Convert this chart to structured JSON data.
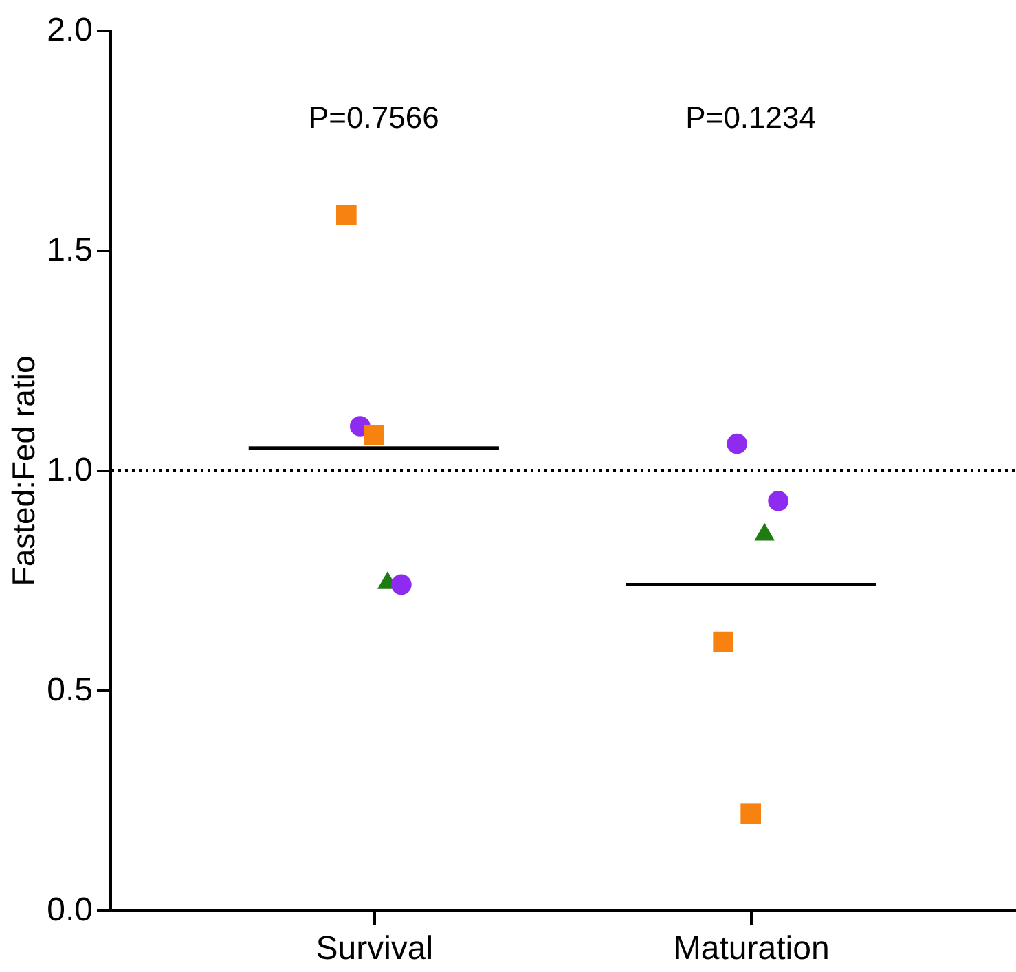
{
  "chart_data": {
    "type": "scatter",
    "categories": [
      "Survival",
      "Maturation"
    ],
    "ylabel": "Fasted:Fed ratio",
    "ylim": [
      0,
      2
    ],
    "yticks": [
      {
        "value": 0,
        "label": "0.0"
      },
      {
        "value": 0.5,
        "label": "0.5"
      },
      {
        "value": 1,
        "label": "1.0"
      },
      {
        "value": 1.5,
        "label": "1.5"
      },
      {
        "value": 2,
        "label": "2.0"
      }
    ],
    "grid": false,
    "series": [
      {
        "color": "#f7820f",
        "marker": "square",
        "values": [
          1.58,
          0.61
        ]
      },
      {
        "color": "#8f2bf0",
        "marker": "circle",
        "values": [
          1.1,
          1.06
        ]
      },
      {
        "color": "#f7820f",
        "marker": "square",
        "values": [
          1.08,
          0.22
        ]
      },
      {
        "color": "#1e7d12",
        "marker": "triangle",
        "values": [
          0.75,
          0.86
        ]
      },
      {
        "color": "#8f2bf0",
        "marker": "circle",
        "values": [
          0.74,
          0.93
        ]
      },
      {
        "type": "box",
        "color": "#000000",
        "boxes": [
          {
            "low": 1.05,
            "q1": 1.05,
            "median": 1.05,
            "q3": 1.05,
            "high": 1.05
          },
          {
            "low": 0.74,
            "q1": 0.74,
            "median": 0.74,
            "q3": 0.74,
            "high": 0.74
          }
        ]
      }
    ],
    "ref_lines": [
      {
        "axis": "y",
        "value": 1,
        "color": "#000000",
        "line_style": "dotted"
      }
    ],
    "annotations": [
      "P=0.7566",
      "P=0.1234"
    ]
  }
}
